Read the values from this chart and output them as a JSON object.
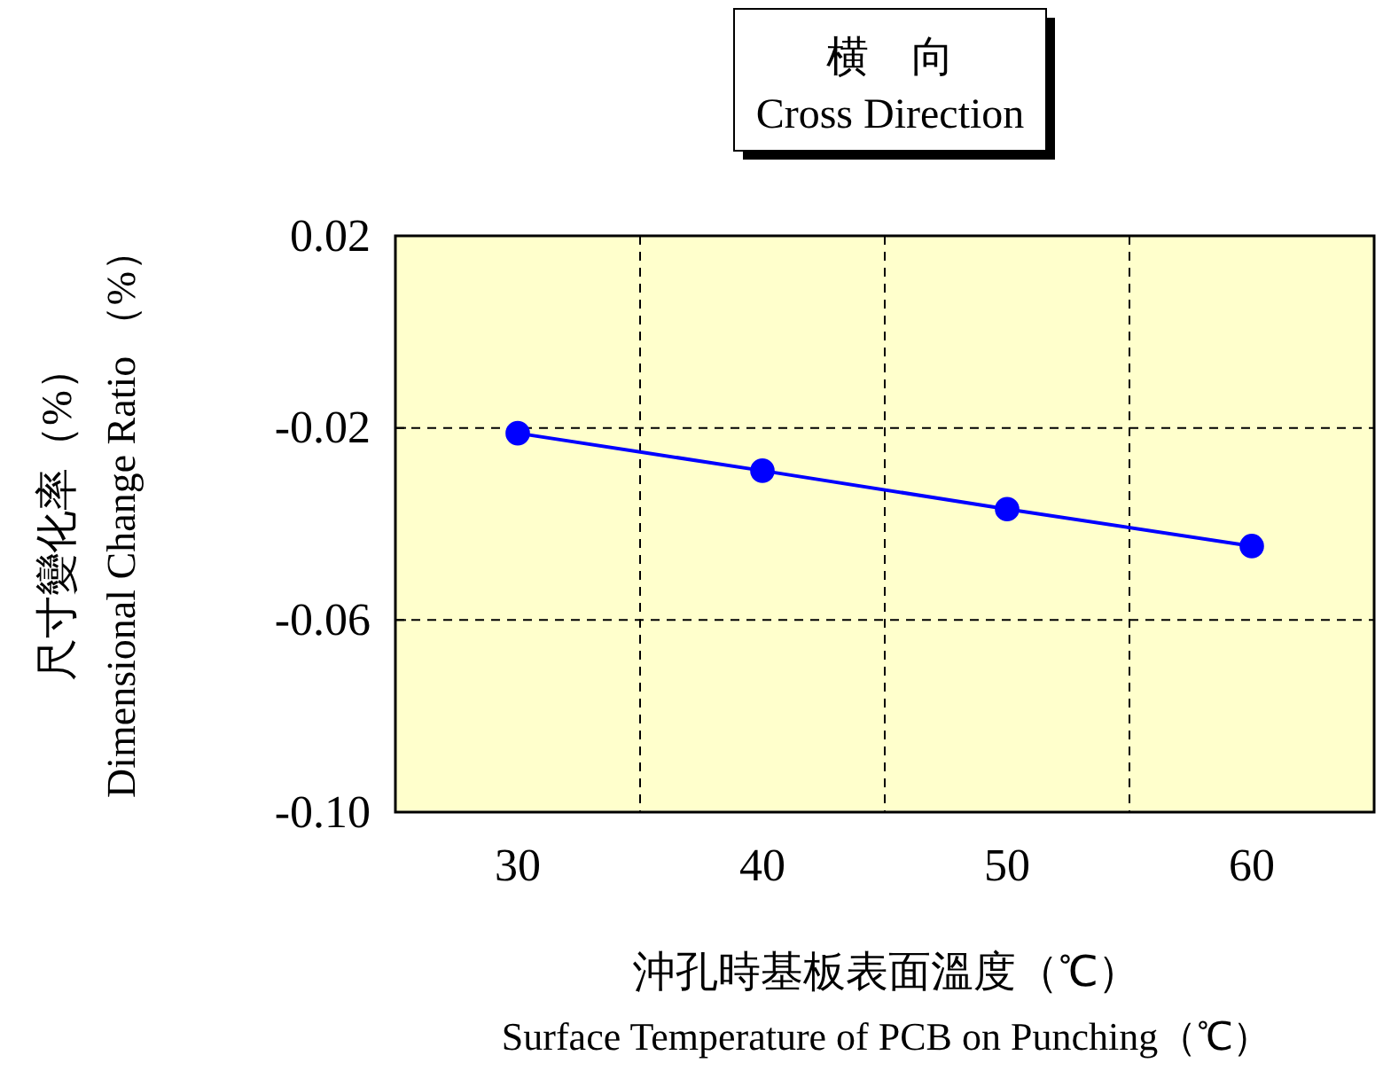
{
  "chart_data": {
    "type": "line",
    "title": "横　向",
    "subtitle": "Cross Direction",
    "xlabel": "沖孔時基板表面溫度（℃）\nSurface Temperature of  PCB on Punching（℃）",
    "ylabel": "尺寸變化率（%）\nDimensional Change Ratio （%）",
    "categories": [
      "30",
      "40",
      "50",
      "60"
    ],
    "series": [
      {
        "color": "#0000ff",
        "values": [
          -0.0211,
          -0.0289,
          -0.0369,
          -0.0446
        ]
      }
    ],
    "ylim": [
      -0.1,
      0.02
    ],
    "yticks": [
      {
        "value": -0.1,
        "label": "-0.10"
      },
      {
        "value": -0.06,
        "label": "-0.06"
      },
      {
        "value": -0.02,
        "label": "-0.02"
      },
      {
        "value": 0.02,
        "label": "0.02"
      }
    ],
    "grid": true,
    "marker": "circle",
    "line_style": "solid"
  }
}
